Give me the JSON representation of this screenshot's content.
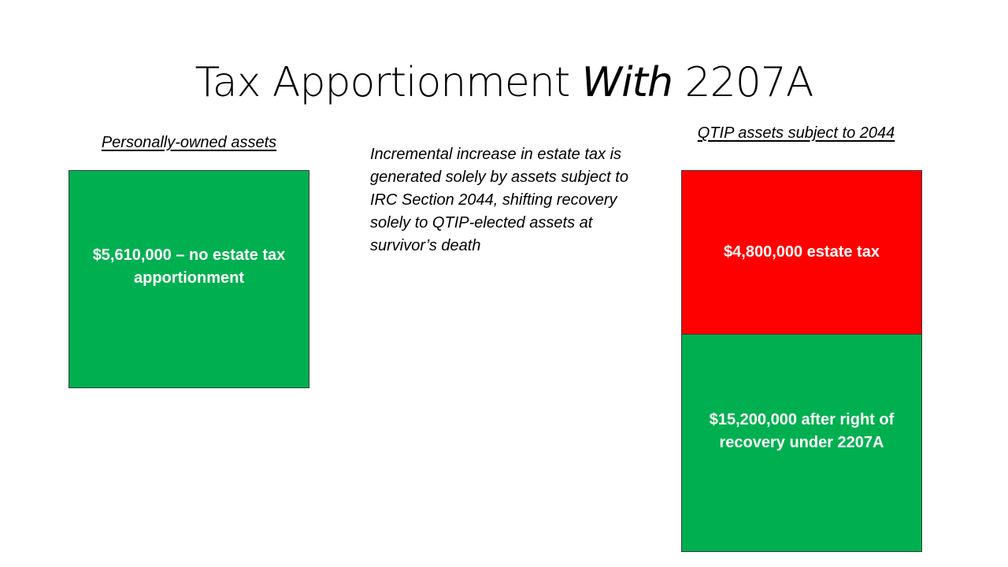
{
  "title": {
    "main": "Tax Apportionment ",
    "italic": "With",
    "suffix": " 2207A"
  },
  "left": {
    "heading": "Personally-owned assets",
    "box_label": "$5,610,000 – no estate tax apportionment",
    "box_color": "#00b050"
  },
  "middle": {
    "text": "Incremental increase in estate tax is generated solely by assets subject to IRC Section 2044, shifting recovery solely to QTIP-elected assets at survivor’s death"
  },
  "right": {
    "heading": "QTIP assets subject to 2044",
    "tax_box_label": "$4,800,000 estate tax",
    "tax_box_color": "#ff0000",
    "after_box_label": "$15,200,000 after right of recovery under 2207A",
    "after_box_color": "#00b050"
  }
}
